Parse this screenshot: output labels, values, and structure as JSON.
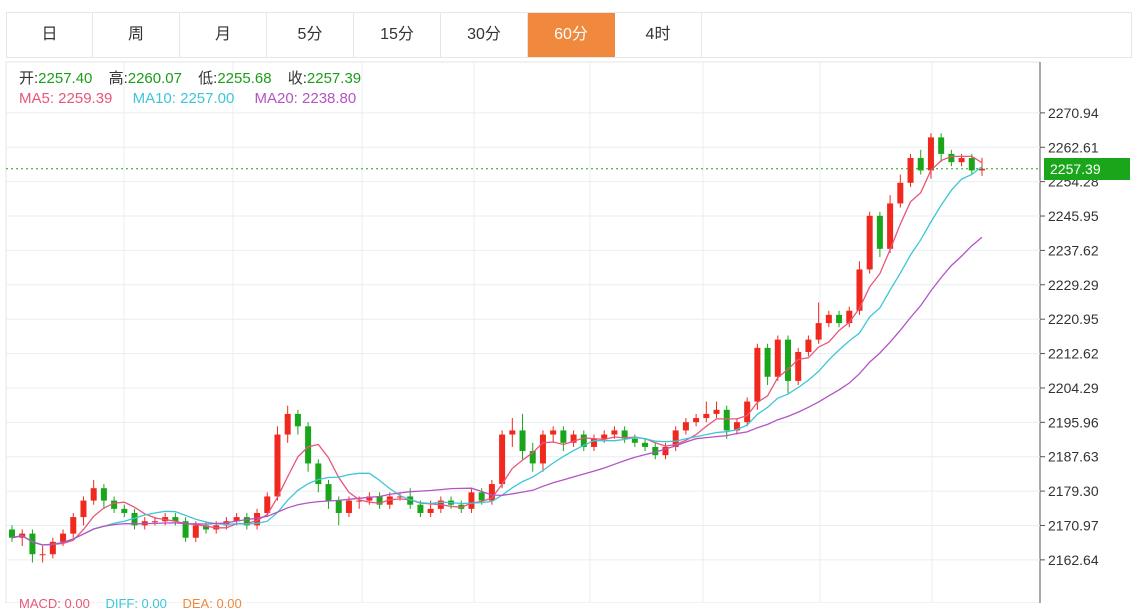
{
  "tabs": [
    {
      "label": "日"
    },
    {
      "label": "周"
    },
    {
      "label": "月"
    },
    {
      "label": "5分"
    },
    {
      "label": "15分"
    },
    {
      "label": "30分"
    },
    {
      "label": "60分",
      "active": true
    },
    {
      "label": "4时"
    }
  ],
  "ohlc": {
    "open_label": "开:",
    "open": "2257.40",
    "high_label": "高:",
    "high": "2260.07",
    "low_label": "低:",
    "low": "2255.68",
    "close_label": "收:",
    "close": "2257.39"
  },
  "ma": {
    "ma5": "MA5: 2259.39",
    "ma10": "MA10: 2257.00",
    "ma20": "MA20: 2238.80",
    "ma5_color": "#e8567a",
    "ma10_color": "#3cc6d8",
    "ma20_color": "#b354c4"
  },
  "last_price": "2257.39",
  "macd": {
    "macd": "MACD: 0.00",
    "dif": "DIFF: 0.00",
    "dea": "DEA: 0.00"
  },
  "colors": {
    "up": "#f0281e",
    "down": "#1aa61a",
    "accent": "#f0883e",
    "grid": "#e8eef2"
  },
  "chart_data": {
    "type": "candlestick",
    "ylim": [
      2158,
      2276
    ],
    "y_ticks": [
      "2270.94",
      "2262.61",
      "2254.28",
      "2245.95",
      "2237.62",
      "2229.29",
      "2220.95",
      "2212.62",
      "2204.29",
      "2195.96",
      "2187.63",
      "2179.30",
      "2170.97",
      "2162.64"
    ],
    "y_tick_values": [
      2270.94,
      2262.61,
      2254.28,
      2245.95,
      2237.62,
      2229.29,
      2220.95,
      2212.62,
      2204.29,
      2195.96,
      2187.63,
      2179.3,
      2170.97,
      2162.64
    ],
    "candles": [
      [
        2170,
        2168,
        2171,
        2167
      ],
      [
        2168,
        2169,
        2170,
        2166
      ],
      [
        2169,
        2164,
        2170,
        2162
      ],
      [
        2164,
        2164,
        2166,
        2162
      ],
      [
        2164,
        2167,
        2168,
        2163
      ],
      [
        2167,
        2169,
        2170,
        2166
      ],
      [
        2169,
        2173,
        2174,
        2168
      ],
      [
        2173,
        2177,
        2178,
        2171
      ],
      [
        2177,
        2180,
        2182,
        2176
      ],
      [
        2180,
        2177,
        2181,
        2175
      ],
      [
        2177,
        2175,
        2178,
        2174
      ],
      [
        2175,
        2174,
        2176,
        2173
      ],
      [
        2174,
        2171,
        2175,
        2170
      ],
      [
        2171,
        2172,
        2173,
        2170
      ],
      [
        2172,
        2172,
        2173,
        2171
      ],
      [
        2172,
        2173,
        2174,
        2171
      ],
      [
        2173,
        2172,
        2174,
        2171
      ],
      [
        2172,
        2168,
        2173,
        2167
      ],
      [
        2168,
        2171,
        2172,
        2167
      ],
      [
        2171,
        2170,
        2172,
        2169
      ],
      [
        2170,
        2171,
        2172,
        2169
      ],
      [
        2171,
        2172,
        2173,
        2170
      ],
      [
        2172,
        2173,
        2174,
        2171
      ],
      [
        2173,
        2171,
        2174,
        2170
      ],
      [
        2171,
        2174,
        2175,
        2170
      ],
      [
        2174,
        2178,
        2179,
        2173
      ],
      [
        2178,
        2193,
        2195,
        2177
      ],
      [
        2193,
        2198,
        2200,
        2191
      ],
      [
        2198,
        2195,
        2199,
        2193
      ],
      [
        2195,
        2186,
        2196,
        2184
      ],
      [
        2186,
        2181,
        2187,
        2179
      ],
      [
        2181,
        2177,
        2182,
        2175
      ],
      [
        2177,
        2174,
        2178,
        2171
      ],
      [
        2174,
        2177,
        2178,
        2173
      ],
      [
        2177,
        2177,
        2178,
        2175
      ],
      [
        2177,
        2178,
        2179,
        2176
      ],
      [
        2178,
        2176,
        2179,
        2175
      ],
      [
        2176,
        2178,
        2179,
        2175
      ],
      [
        2178,
        2178,
        2179,
        2177
      ],
      [
        2178,
        2176,
        2180,
        2175
      ],
      [
        2176,
        2174,
        2177,
        2173
      ],
      [
        2174,
        2175,
        2177,
        2173
      ],
      [
        2175,
        2177,
        2178,
        2174
      ],
      [
        2177,
        2176,
        2178,
        2175
      ],
      [
        2176,
        2175,
        2177,
        2174
      ],
      [
        2175,
        2179,
        2180,
        2174
      ],
      [
        2179,
        2177,
        2180,
        2176
      ],
      [
        2177,
        2181,
        2182,
        2176
      ],
      [
        2181,
        2193,
        2194,
        2180
      ],
      [
        2193,
        2194,
        2197,
        2190
      ],
      [
        2194,
        2189,
        2198,
        2187
      ],
      [
        2189,
        2186,
        2191,
        2184
      ],
      [
        2186,
        2193,
        2194,
        2184
      ],
      [
        2193,
        2194,
        2195,
        2191
      ],
      [
        2194,
        2191,
        2195,
        2189
      ],
      [
        2191,
        2193,
        2194,
        2190
      ],
      [
        2193,
        2190,
        2194,
        2189
      ],
      [
        2190,
        2192,
        2193,
        2189
      ],
      [
        2192,
        2193,
        2194,
        2191
      ],
      [
        2193,
        2194,
        2195,
        2192
      ],
      [
        2194,
        2192,
        2195,
        2191
      ],
      [
        2192,
        2191,
        2193,
        2190
      ],
      [
        2191,
        2190,
        2192,
        2189
      ],
      [
        2190,
        2188,
        2191,
        2187
      ],
      [
        2188,
        2190,
        2191,
        2187
      ],
      [
        2190,
        2194,
        2195,
        2189
      ],
      [
        2194,
        2196,
        2197,
        2193
      ],
      [
        2196,
        2197,
        2198,
        2195
      ],
      [
        2197,
        2198,
        2201,
        2196
      ],
      [
        2198,
        2199,
        2201,
        2197
      ],
      [
        2199,
        2194,
        2200,
        2192
      ],
      [
        2194,
        2196,
        2197,
        2193
      ],
      [
        2196,
        2201,
        2202,
        2195
      ],
      [
        2201,
        2214,
        2215,
        2199
      ],
      [
        2214,
        2207,
        2215,
        2205
      ],
      [
        2207,
        2216,
        2217,
        2206
      ],
      [
        2216,
        2206,
        2217,
        2203
      ],
      [
        2206,
        2213,
        2214,
        2205
      ],
      [
        2213,
        2216,
        2217,
        2212
      ],
      [
        2216,
        2220,
        2225,
        2215
      ],
      [
        2220,
        2222,
        2223,
        2219
      ],
      [
        2222,
        2220,
        2223,
        2219
      ],
      [
        2220,
        2223,
        2224,
        2219
      ],
      [
        2223,
        2233,
        2235,
        2222
      ],
      [
        2233,
        2246,
        2247,
        2232
      ],
      [
        2246,
        2238,
        2247,
        2236
      ],
      [
        2238,
        2249,
        2251,
        2237
      ],
      [
        2249,
        2254,
        2256,
        2248
      ],
      [
        2254,
        2260,
        2261,
        2253
      ],
      [
        2260,
        2257,
        2262,
        2256
      ],
      [
        2257,
        2265,
        2266,
        2255
      ],
      [
        2265,
        2261,
        2266,
        2259
      ],
      [
        2261,
        2259,
        2262,
        2258
      ],
      [
        2259,
        2260,
        2261,
        2258
      ],
      [
        2260,
        2257,
        2261,
        2256
      ],
      [
        2257,
        2257.39,
        2260.07,
        2255.68
      ]
    ]
  }
}
